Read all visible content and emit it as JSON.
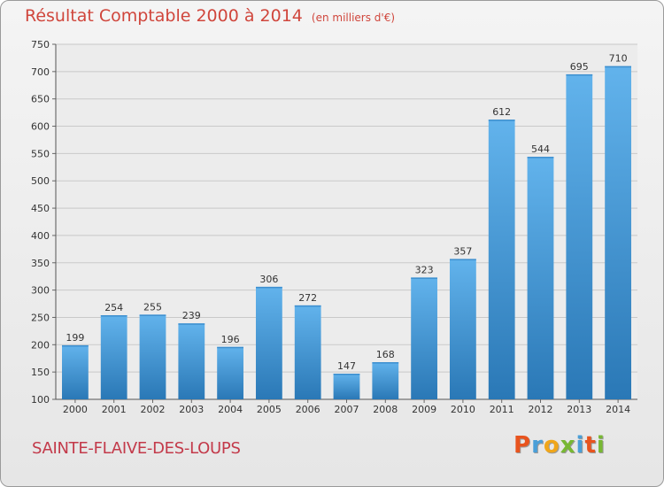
{
  "title": "Résultat Comptable 2000 à 2014",
  "unit": "(en milliers d'€)",
  "commune": "SAINTE-FLAIVE-DES-LOUPS",
  "logo": {
    "text": "Proxiti",
    "colors": [
      "#e8541e",
      "#4a9fd8",
      "#f0a61a",
      "#78b833",
      "#4a9fd8",
      "#e8541e",
      "#78b833"
    ]
  },
  "colors": {
    "title": "#d0463c",
    "commune": "#c33a4a",
    "bar_top": "#62b3ec",
    "bar_bottom": "#2a78b6",
    "grid": "#c9c9c9"
  },
  "chart_data": {
    "type": "bar",
    "categories": [
      "2000",
      "2001",
      "2002",
      "2003",
      "2004",
      "2005",
      "2006",
      "2007",
      "2008",
      "2009",
      "2010",
      "2011",
      "2012",
      "2013",
      "2014"
    ],
    "values": [
      199,
      254,
      255,
      239,
      196,
      306,
      272,
      147,
      168,
      323,
      357,
      612,
      544,
      695,
      710
    ],
    "ylim": [
      100,
      750
    ],
    "yticks": [
      100,
      150,
      200,
      250,
      300,
      350,
      400,
      450,
      500,
      550,
      600,
      650,
      700,
      750
    ],
    "grid": true,
    "data_labels": true
  }
}
